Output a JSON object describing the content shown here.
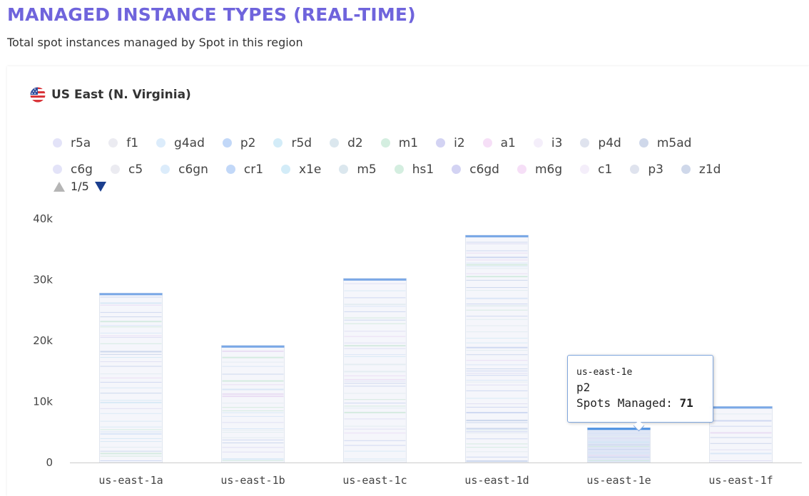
{
  "header": {
    "title": "MANAGED INSTANCE TYPES (REAL-TIME)",
    "subtitle": "Total spot instances managed by Spot in this region"
  },
  "region": {
    "flag_icon": "us-flag-icon",
    "name": "US East (N. Virginia)"
  },
  "legend": {
    "rows": [
      [
        {
          "label": "r5a",
          "color": "#e3e3f8"
        },
        {
          "label": "f1",
          "color": "#ebebf1"
        },
        {
          "label": "g4ad",
          "color": "#dcecfb"
        },
        {
          "label": "p2",
          "color": "#c2d8f8"
        },
        {
          "label": "r5d",
          "color": "#d3ecf8"
        },
        {
          "label": "d2",
          "color": "#dbe7ee"
        },
        {
          "label": "m1",
          "color": "#d4eee0"
        },
        {
          "label": "i2",
          "color": "#d3d3f3"
        },
        {
          "label": "a1",
          "color": "#f6dff7"
        },
        {
          "label": "i3",
          "color": "#f4eefa"
        },
        {
          "label": "p4d",
          "color": "#dfe3ee"
        },
        {
          "label": "m5ad",
          "color": "#cfd8ea"
        }
      ],
      [
        {
          "label": "c6g",
          "color": "#e3e3f8"
        },
        {
          "label": "c5",
          "color": "#ebebf1"
        },
        {
          "label": "c6gn",
          "color": "#dcecfb"
        },
        {
          "label": "cr1",
          "color": "#c2d8f8"
        },
        {
          "label": "x1e",
          "color": "#d3ecf8"
        },
        {
          "label": "m5",
          "color": "#dbe7ee"
        },
        {
          "label": "hs1",
          "color": "#d4eee0"
        },
        {
          "label": "c6gd",
          "color": "#d3d3f3"
        },
        {
          "label": "m6g",
          "color": "#f6dff7"
        },
        {
          "label": "c1",
          "color": "#f4eefa"
        },
        {
          "label": "p3",
          "color": "#dfe3ee"
        },
        {
          "label": "z1d",
          "color": "#cfd8ea"
        }
      ]
    ]
  },
  "pager": {
    "text": "1/5",
    "up_icon": "triangle-up-icon",
    "down_icon": "triangle-down-icon"
  },
  "tooltip": {
    "location": "us-east-1e",
    "type": "p2",
    "label": "Spots Managed:",
    "value": "71"
  },
  "chart_data": {
    "type": "bar",
    "stacked": true,
    "categories": [
      "us-east-1a",
      "us-east-1b",
      "us-east-1c",
      "us-east-1d",
      "us-east-1e",
      "us-east-1f"
    ],
    "totals": [
      27800,
      19200,
      30200,
      37300,
      5700,
      9200
    ],
    "yticks": [
      0,
      10000,
      20000,
      30000,
      40000
    ],
    "ytick_labels": [
      "0",
      "10k",
      "20k",
      "30k",
      "40k"
    ],
    "ylim": [
      0,
      40000
    ],
    "highlight": {
      "category": "us-east-1e",
      "series": "p2",
      "value": 71
    },
    "colors": {
      "axis": "#666666",
      "gridline": "#cccccc",
      "band_light": "#f5f6fb",
      "band_lines": [
        "#c9d3ee",
        "#d3e7f4",
        "#dcdcf2",
        "#e1ebf0",
        "#cfe9dc",
        "#e8d9f2",
        "#c6d2ea",
        "#d6e4f6"
      ],
      "top_edge": "#7aa8e6",
      "highlight": "#4a90e2"
    }
  }
}
